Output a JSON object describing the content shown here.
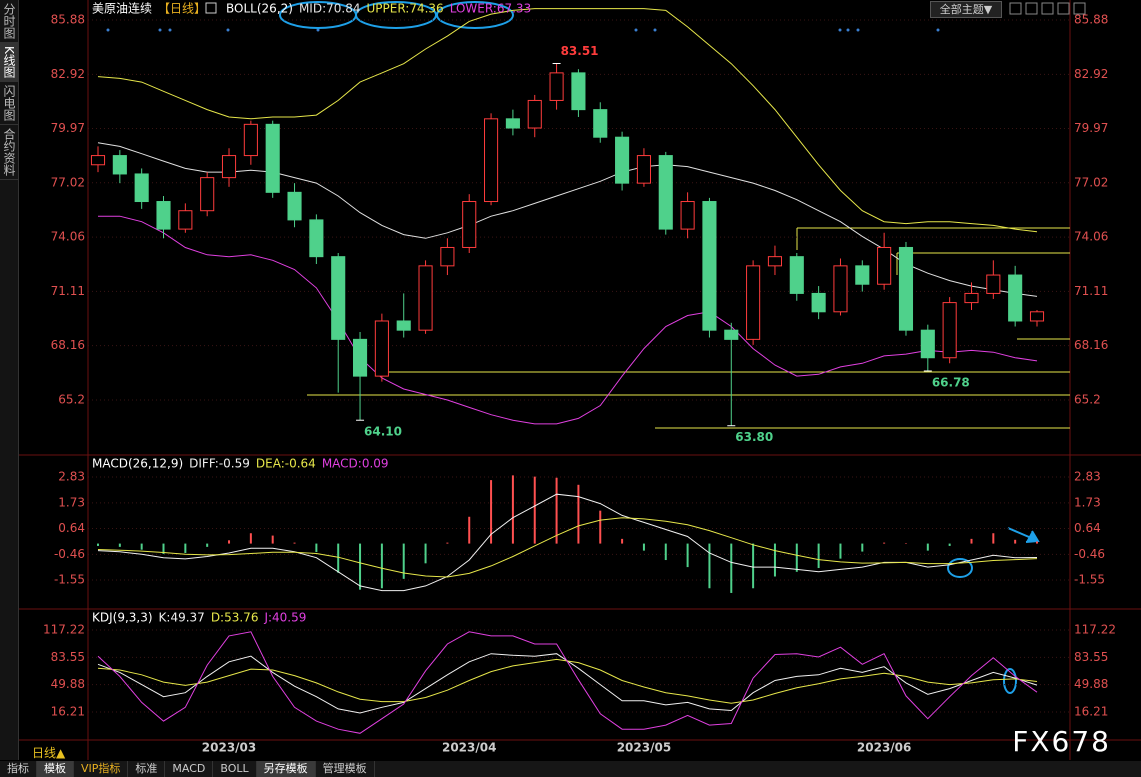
{
  "chart_data": [
    {
      "type": "candlestick",
      "title": "美原油连续",
      "period": "【日线】",
      "indicator": "BOLL(26,2)",
      "categories": [
        null,
        null,
        null,
        null,
        null,
        null,
        "2023/03",
        null,
        null,
        null,
        null,
        null,
        null,
        null,
        null,
        null,
        null,
        "2023/04",
        null,
        null,
        null,
        null,
        null,
        null,
        null,
        "2023/05",
        null,
        null,
        null,
        null,
        null,
        null,
        null,
        null,
        null,
        null,
        "2023/06",
        null,
        null,
        null,
        null,
        null,
        null,
        null
      ],
      "open": [
        78.0,
        78.5,
        77.5,
        76.0,
        74.5,
        75.5,
        77.3,
        78.5,
        80.2,
        76.5,
        75.0,
        73.0,
        68.5,
        66.5,
        69.5,
        69.0,
        72.5,
        73.5,
        76.0,
        80.5,
        80.0,
        81.5,
        83.0,
        81.0,
        79.5,
        77.0,
        78.5,
        74.5,
        76.0,
        69.0,
        68.5,
        72.5,
        73.0,
        71.0,
        70.0,
        72.5,
        71.5,
        73.5,
        69.0,
        67.5,
        70.5,
        71.0,
        72.0,
        69.5
      ],
      "high": [
        79.0,
        78.8,
        77.8,
        76.3,
        75.9,
        77.6,
        78.9,
        80.4,
        80.4,
        77.0,
        75.3,
        73.2,
        68.9,
        69.9,
        71.0,
        72.8,
        74.0,
        76.4,
        80.8,
        81.0,
        81.8,
        83.51,
        83.2,
        81.4,
        79.8,
        78.9,
        78.7,
        76.5,
        76.2,
        69.4,
        72.8,
        73.6,
        73.2,
        71.4,
        72.9,
        72.8,
        74.3,
        73.8,
        69.3,
        70.8,
        71.6,
        72.8,
        72.5,
        70.1
      ],
      "low": [
        77.6,
        77.0,
        75.6,
        74.0,
        74.3,
        75.2,
        76.8,
        78.0,
        76.2,
        74.6,
        72.6,
        65.6,
        64.1,
        66.2,
        68.6,
        68.8,
        72.0,
        73.2,
        75.8,
        79.6,
        79.5,
        81.0,
        80.6,
        79.2,
        76.6,
        76.8,
        74.2,
        74.0,
        68.6,
        63.8,
        68.2,
        72.0,
        70.6,
        69.6,
        69.8,
        71.1,
        71.2,
        68.7,
        66.78,
        67.2,
        70.1,
        70.7,
        69.2,
        69.2
      ],
      "close": [
        78.5,
        77.5,
        76.0,
        74.5,
        75.5,
        77.3,
        78.5,
        80.2,
        76.5,
        75.0,
        73.0,
        68.5,
        66.5,
        69.5,
        69.0,
        72.5,
        73.5,
        76.0,
        80.5,
        80.0,
        81.5,
        83.0,
        81.0,
        79.5,
        77.0,
        78.5,
        74.5,
        76.0,
        69.0,
        68.5,
        72.5,
        73.0,
        71.0,
        70.0,
        72.5,
        71.5,
        73.5,
        69.0,
        67.5,
        70.5,
        71.0,
        72.0,
        69.5,
        70.0
      ],
      "up_color": "#ff3c3c",
      "down_color": "#4fd18b",
      "series": [
        {
          "name": "MID:70.84",
          "color": "#e0e0e0",
          "values": [
            79.2,
            79.0,
            78.6,
            78.2,
            77.8,
            77.6,
            77.6,
            77.7,
            77.6,
            77.3,
            77.0,
            76.3,
            75.4,
            74.7,
            74.2,
            74.0,
            74.3,
            74.7,
            75.2,
            75.5,
            75.9,
            76.3,
            76.7,
            77.1,
            77.6,
            77.9,
            78.0,
            77.9,
            77.6,
            77.3,
            77.0,
            76.6,
            76.1,
            75.5,
            74.9,
            74.1,
            73.4,
            72.6,
            72.1,
            71.7,
            71.4,
            71.2,
            71.0,
            70.84
          ]
        },
        {
          "name": "UPPER:74.36",
          "color": "#e6e64a",
          "values": [
            82.8,
            82.7,
            82.5,
            82.0,
            81.5,
            81.0,
            80.6,
            80.5,
            80.6,
            80.6,
            80.7,
            81.5,
            82.5,
            83.0,
            83.5,
            84.3,
            85.0,
            85.8,
            86.2,
            86.4,
            86.5,
            86.5,
            86.5,
            86.5,
            86.5,
            86.5,
            86.4,
            85.5,
            84.5,
            83.5,
            82.3,
            81.0,
            79.5,
            78.0,
            76.6,
            75.5,
            74.9,
            74.8,
            74.9,
            74.9,
            74.8,
            74.7,
            74.5,
            74.36
          ]
        },
        {
          "name": "LOWER:67.33",
          "color": "#e040e0",
          "values": [
            75.2,
            75.2,
            74.9,
            74.3,
            73.5,
            73.1,
            73.0,
            73.1,
            72.8,
            72.3,
            71.3,
            69.5,
            67.5,
            66.4,
            65.8,
            65.5,
            65.2,
            64.8,
            64.4,
            64.1,
            63.9,
            63.9,
            64.2,
            64.9,
            66.5,
            68.0,
            69.2,
            69.8,
            70.0,
            69.2,
            68.0,
            67.1,
            66.5,
            66.6,
            67.0,
            67.2,
            67.6,
            67.7,
            67.9,
            67.8,
            67.9,
            67.8,
            67.5,
            67.33
          ]
        }
      ],
      "annotations": [
        83.51,
        {
          "value": 64.1,
          "label": "64.10"
        },
        {
          "value": 63.8,
          "label": "63.80"
        },
        66.78
      ],
      "ylim": [
        62.48,
        86.53
      ],
      "yticks": [
        85.88,
        82.92,
        79.97,
        77.02,
        74.06,
        71.11,
        68.16,
        65.2
      ],
      "grid": true
    },
    {
      "type": "combo",
      "title": "MACD(26,12,9)",
      "up_color": "#ff5050",
      "down_color": "#4fd18b",
      "series": [
        {
          "name": "DIFF:-0.59",
          "color": "#f0f0f0",
          "values": [
            -0.3,
            -0.35,
            -0.45,
            -0.6,
            -0.65,
            -0.55,
            -0.4,
            -0.2,
            -0.2,
            -0.35,
            -0.6,
            -1.2,
            -1.8,
            -2.0,
            -2.0,
            -1.8,
            -1.4,
            -0.7,
            0.4,
            1.1,
            1.6,
            2.1,
            2.0,
            1.7,
            1.2,
            0.9,
            0.6,
            0.3,
            -0.4,
            -0.8,
            -1.0,
            -1.0,
            -1.1,
            -1.2,
            -1.1,
            -1.0,
            -0.8,
            -0.8,
            -1.0,
            -0.9,
            -0.7,
            -0.5,
            -0.6,
            -0.59
          ]
        },
        {
          "name": "DEA:-0.64",
          "color": "#e6e64a",
          "values": [
            -0.25,
            -0.28,
            -0.32,
            -0.38,
            -0.45,
            -0.48,
            -0.47,
            -0.42,
            -0.37,
            -0.37,
            -0.42,
            -0.58,
            -0.82,
            -1.05,
            -1.25,
            -1.38,
            -1.42,
            -1.27,
            -0.95,
            -0.55,
            -0.1,
            0.35,
            0.75,
            1.0,
            1.1,
            1.05,
            0.95,
            0.8,
            0.55,
            0.25,
            -0.05,
            -0.3,
            -0.5,
            -0.68,
            -0.78,
            -0.83,
            -0.82,
            -0.8,
            -0.85,
            -0.85,
            -0.8,
            -0.72,
            -0.68,
            -0.64
          ]
        },
        {
          "name": "MACD:0.09",
          "color": "#e040e0",
          "style": "bar",
          "values": [
            -0.1,
            -0.14,
            -0.26,
            -0.44,
            -0.4,
            -0.14,
            0.14,
            0.44,
            0.34,
            0.04,
            -0.36,
            -1.24,
            -1.96,
            -1.9,
            -1.5,
            -0.84,
            0.04,
            1.14,
            2.7,
            2.9,
            2.85,
            2.8,
            2.5,
            1.4,
            0.2,
            -0.3,
            -0.7,
            -1.0,
            -1.9,
            -2.1,
            -1.9,
            -1.4,
            -1.2,
            -1.04,
            -0.64,
            -0.34,
            0.04,
            0.02,
            -0.3,
            -0.1,
            0.2,
            0.44,
            0.16,
            0.09
          ]
        }
      ],
      "ylim": [
        -2.74,
        3.64
      ],
      "yticks": [
        2.83,
        1.73,
        0.64,
        -0.46,
        -1.55
      ],
      "grid": true
    },
    {
      "type": "line",
      "title": "KDJ(9,3,3)",
      "series": [
        {
          "name": "K:49.37",
          "color": "#f0f0f0",
          "values": [
            75,
            65,
            50,
            35,
            40,
            60,
            78,
            85,
            65,
            48,
            35,
            20,
            15,
            22,
            28,
            45,
            62,
            78,
            88,
            86,
            85,
            88,
            70,
            50,
            30,
            30,
            25,
            28,
            20,
            18,
            40,
            55,
            60,
            62,
            70,
            65,
            72,
            52,
            38,
            45,
            55,
            65,
            58,
            49.37
          ]
        },
        {
          "name": "D:53.76",
          "color": "#e6e64a",
          "values": [
            70,
            68,
            62,
            53,
            49,
            53,
            61,
            69,
            68,
            61,
            52,
            41,
            32,
            29,
            29,
            34,
            43,
            55,
            66,
            73,
            77,
            81,
            77,
            68,
            55,
            47,
            40,
            36,
            31,
            27,
            31,
            39,
            46,
            51,
            57,
            60,
            64,
            60,
            53,
            50,
            52,
            56,
            57,
            53.76
          ]
        },
        {
          "name": "J:40.59",
          "color": "#e040e0",
          "values": [
            85,
            60,
            28,
            5,
            22,
            74,
            110,
            115,
            60,
            22,
            5,
            -5,
            -10,
            8,
            26,
            67,
            100,
            115,
            110,
            110,
            100,
            100,
            56,
            14,
            -5,
            -5,
            0,
            12,
            0,
            2,
            58,
            87,
            88,
            84,
            96,
            75,
            88,
            36,
            8,
            35,
            61,
            83,
            60,
            40.59
          ]
        }
      ],
      "ylim": [
        -18.3,
        139.4
      ],
      "yticks": [
        117.22,
        83.55,
        49.88,
        16.21
      ],
      "grid": true
    }
  ],
  "ui": {
    "sidebar": [
      "分时图",
      "K线图",
      "闪电图",
      "合约资料"
    ],
    "theme": "全部主题▼",
    "period_tab": "日线▲",
    "tabs": [
      "指标",
      "模板",
      "VIP指标",
      "标准",
      "MACD",
      "BOLL",
      "另存模板",
      "管理模板"
    ],
    "watermark": "FX678"
  }
}
